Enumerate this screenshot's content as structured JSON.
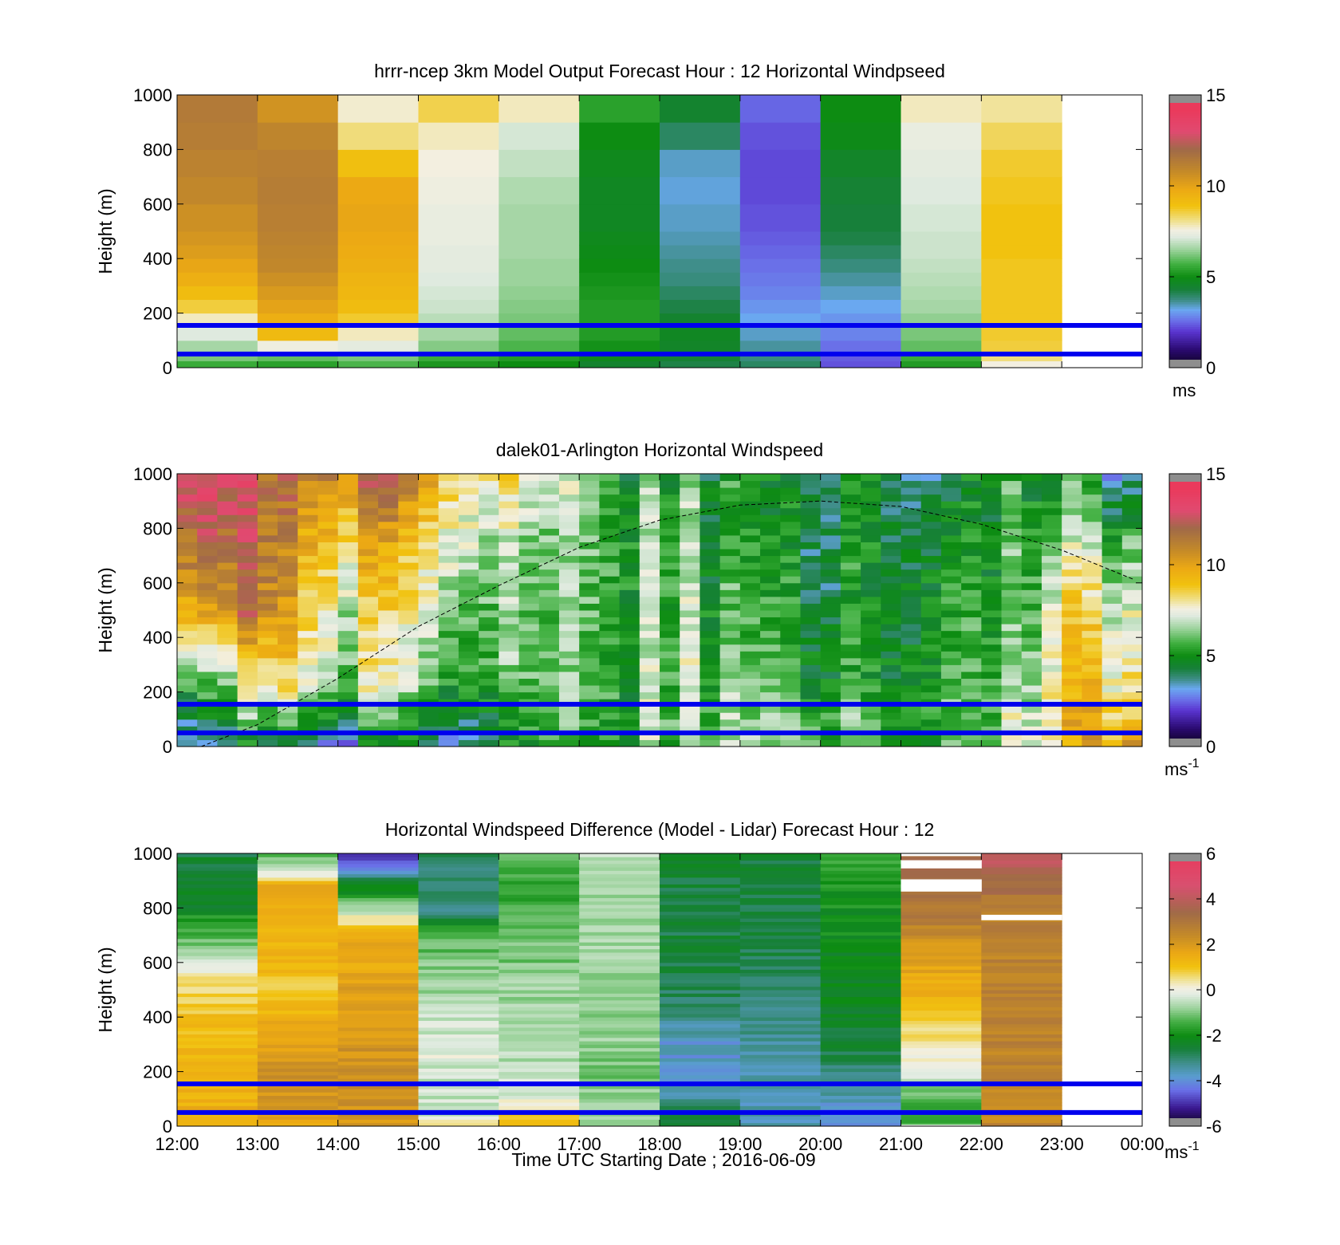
{
  "figure": {
    "xlabel": "Time UTC  Starting Date ; 2016-06-09",
    "x_tick_labels": [
      "12:00",
      "13:00",
      "14:00",
      "15:00",
      "16:00",
      "17:00",
      "18:00",
      "19:00",
      "20:00",
      "21:00",
      "22:00",
      "23:00",
      "00:00"
    ],
    "colors": {
      "boundary_line": "#0000ee",
      "solar_curve": "#000000"
    }
  },
  "chart_data": [
    {
      "type": "heatmap",
      "title": "hrrr-ncep 3km Model Output   Forecast Hour : 12 Horizontal Windpseed",
      "ylabel": "Height (m)",
      "ylim": [
        0,
        1000
      ],
      "y_ticks": [
        "0",
        "200",
        "400",
        "600",
        "800",
        "1000"
      ],
      "x_range": [
        "12:00",
        "00:00"
      ],
      "colorbar": {
        "range": [
          0,
          15
        ],
        "ticks": [
          "0",
          "5",
          "10",
          "15"
        ],
        "unit": "ms",
        "unit_sup": ""
      },
      "colormap": "windspeed",
      "levels_m": [
        0,
        25,
        55,
        100,
        150,
        200,
        250,
        300,
        350,
        400,
        450,
        500,
        600,
        700,
        800,
        900,
        1000
      ],
      "hours": [
        {
          "hour": "12:00",
          "values": [
            5.6,
            6.2,
            6.6,
            7.2,
            7.8,
            8.6,
            9.1,
            9.6,
            9.9,
            10.2,
            10.4,
            10.6,
            10.9,
            11.1,
            11.3,
            11.4
          ]
        },
        {
          "hour": "13:00",
          "values": [
            5.4,
            6.0,
            7.5,
            9.2,
            9.6,
            10.0,
            10.3,
            10.6,
            10.9,
            11.0,
            11.1,
            11.2,
            11.3,
            11.2,
            11.0,
            10.5
          ]
        },
        {
          "hour": "14:00",
          "values": [
            5.8,
            6.2,
            7.3,
            7.8,
            8.7,
            9.1,
            9.3,
            9.4,
            9.6,
            9.7,
            9.8,
            9.9,
            9.8,
            9.0,
            8.2,
            7.7
          ]
        },
        {
          "hour": "15:00",
          "values": [
            5.2,
            5.6,
            6.3,
            6.6,
            6.8,
            7.0,
            7.1,
            7.2,
            7.3,
            7.3,
            7.4,
            7.4,
            7.5,
            7.6,
            7.8,
            8.5
          ]
        },
        {
          "hour": "16:00",
          "values": [
            5.0,
            5.3,
            5.8,
            6.0,
            6.2,
            6.3,
            6.4,
            6.5,
            6.5,
            6.6,
            6.6,
            6.6,
            6.7,
            6.9,
            7.1,
            7.8
          ]
        },
        {
          "hour": "17:00",
          "values": [
            4.5,
            4.8,
            5.1,
            5.3,
            5.3,
            5.3,
            5.2,
            5.1,
            5.0,
            4.9,
            4.8,
            4.7,
            4.7,
            4.8,
            5.0,
            5.4
          ]
        },
        {
          "hour": "18:00",
          "values": [
            4.2,
            4.4,
            4.6,
            4.7,
            4.5,
            4.2,
            4.0,
            3.8,
            3.7,
            3.6,
            3.5,
            3.4,
            3.3,
            3.4,
            4.0,
            4.5
          ]
        },
        {
          "hour": "19:00",
          "values": [
            4.0,
            3.8,
            3.6,
            3.4,
            3.2,
            3.0,
            2.8,
            2.7,
            2.6,
            2.5,
            2.4,
            2.3,
            2.2,
            2.2,
            2.3,
            2.5
          ]
        },
        {
          "hour": "20:00",
          "values": [
            2.3,
            2.4,
            2.6,
            2.8,
            3.0,
            3.2,
            3.4,
            3.6,
            3.8,
            4.0,
            4.2,
            4.3,
            4.4,
            4.6,
            4.9,
            5.0
          ]
        },
        {
          "hour": "21:00",
          "values": [
            5.3,
            5.6,
            6.0,
            6.2,
            6.4,
            6.6,
            6.7,
            6.8,
            6.9,
            7.0,
            7.0,
            7.1,
            7.2,
            7.3,
            7.4,
            7.8
          ]
        },
        {
          "hour": "22:00",
          "values": [
            7.6,
            8.2,
            8.6,
            8.7,
            8.8,
            8.8,
            8.8,
            8.8,
            8.8,
            8.9,
            8.9,
            8.9,
            8.8,
            8.7,
            8.4,
            8.0
          ]
        },
        {
          "hour": "23:00",
          "values": []
        }
      ],
      "boundary_lines_m": [
        50,
        155
      ]
    },
    {
      "type": "heatmap",
      "title": "dalek01-Arlington  Horizontal Windspeed",
      "ylabel": "Height (m)",
      "ylim": [
        0,
        1000
      ],
      "y_ticks": [
        "0",
        "200",
        "400",
        "600",
        "800",
        "1000"
      ],
      "x_range": [
        "12:00",
        "00:00"
      ],
      "colorbar": {
        "range": [
          0,
          15
        ],
        "ticks": [
          "0",
          "5",
          "10",
          "15"
        ],
        "unit": "ms",
        "unit_sup": "-1"
      },
      "colormap": "windspeed",
      "lidar_profile_keys_hours": [
        12.0,
        12.5,
        13.0,
        13.5,
        14.0,
        14.5,
        15.0,
        15.5,
        16.0,
        16.5,
        17.0,
        17.5,
        18.0,
        18.5,
        19.0,
        19.5,
        20.0,
        20.5,
        21.0,
        21.5,
        22.0,
        22.5,
        23.0,
        23.5,
        24.0
      ],
      "lidar_profile_keys_heights_m": [
        0,
        100,
        250,
        500,
        750,
        1000
      ],
      "lidar_profile_keys_values": [
        [
          3.2,
          4.5,
          6.0,
          10.0,
          12.0,
          13.5
        ],
        [
          3.5,
          5.0,
          6.5,
          10.8,
          12.5,
          13.8
        ],
        [
          3.6,
          5.2,
          7.5,
          11.0,
          11.2,
          11.5
        ],
        [
          3.5,
          5.5,
          7.8,
          9.0,
          10.0,
          11.0
        ],
        [
          3.4,
          5.0,
          7.0,
          7.8,
          9.2,
          11.5
        ],
        [
          3.5,
          5.2,
          6.8,
          7.6,
          9.0,
          11.8
        ],
        [
          4.0,
          5.0,
          6.6,
          7.4,
          8.5,
          10.5
        ],
        [
          4.5,
          5.2,
          6.5,
          7.3,
          8.5,
          9.5
        ],
        [
          4.6,
          5.0,
          6.2,
          6.4,
          7.0,
          8.5
        ],
        [
          5.0,
          5.4,
          5.6,
          5.8,
          6.0,
          7.0
        ],
        [
          5.2,
          5.5,
          5.4,
          5.6,
          5.8,
          6.0
        ],
        [
          5.6,
          5.8,
          5.6,
          5.8,
          5.7,
          5.4
        ],
        [
          6.0,
          6.2,
          6.0,
          6.0,
          5.8,
          5.6
        ],
        [
          6.2,
          6.4,
          6.2,
          6.0,
          5.8,
          5.5
        ],
        [
          6.4,
          6.5,
          6.0,
          5.6,
          5.2,
          5.0
        ],
        [
          6.5,
          6.6,
          5.8,
          5.4,
          5.0,
          4.8
        ],
        [
          6.5,
          6.6,
          5.6,
          5.2,
          5.0,
          5.2
        ],
        [
          6.0,
          6.2,
          5.4,
          5.2,
          5.2,
          5.5
        ],
        [
          5.5,
          6.0,
          5.4,
          5.2,
          5.0,
          4.2
        ],
        [
          5.6,
          5.9,
          5.5,
          5.2,
          4.8,
          4.0
        ],
        [
          5.8,
          6.0,
          5.6,
          5.2,
          5.0,
          4.5
        ],
        [
          7.5,
          7.2,
          6.4,
          6.0,
          6.0,
          5.5
        ],
        [
          9.0,
          9.4,
          9.0,
          8.6,
          7.0,
          5.5
        ],
        [
          10.0,
          9.5,
          8.8,
          8.2,
          6.5,
          4.5
        ],
        [
          10.5,
          9.0,
          8.0,
          7.2,
          6.0,
          3.0
        ]
      ],
      "solar_curve": {
        "hours": [
          12.3,
          13.0,
          14.0,
          15.0,
          16.0,
          17.0,
          18.0,
          19.0,
          20.0,
          21.0,
          22.0,
          23.0,
          24.0
        ],
        "heights_m": [
          0,
          80,
          250,
          440,
          590,
          730,
          830,
          885,
          900,
          880,
          815,
          720,
          600
        ]
      },
      "boundary_lines_m": [
        50,
        155
      ]
    },
    {
      "type": "heatmap",
      "title": "Horizontal Windspeed Difference (Model - Lidar) Forecast Hour : 12",
      "ylabel": "Height (m)",
      "ylim": [
        0,
        1000
      ],
      "y_ticks": [
        "0",
        "200",
        "400",
        "600",
        "800",
        "1000"
      ],
      "x_range": [
        "12:00",
        "00:00"
      ],
      "colorbar": {
        "range": [
          -6,
          6
        ],
        "ticks": [
          "-6",
          "-4",
          "-2",
          "0",
          "2",
          "4",
          "6"
        ],
        "unit": "ms",
        "unit_sup": "-1"
      },
      "colormap": "difference",
      "diff_profiles": [
        {
          "hour": "12:00",
          "heights_m": [
            0,
            150,
            300,
            450,
            550,
            650,
            800,
            1000
          ],
          "values": [
            1.5,
            1.4,
            1.3,
            0.9,
            0.3,
            -0.8,
            -2.2,
            -2.6
          ]
        },
        {
          "hour": "13:00",
          "heights_m": [
            0,
            150,
            300,
            500,
            700,
            880,
            940,
            1000
          ],
          "values": [
            1.6,
            2.3,
            1.8,
            1.0,
            1.4,
            1.6,
            -0.5,
            -1.2
          ]
        },
        {
          "hour": "14:00",
          "heights_m": [
            0,
            150,
            300,
            500,
            700,
            760,
            820,
            900,
            960,
            1000
          ],
          "values": [
            2.0,
            2.3,
            2.1,
            1.8,
            1.5,
            0.3,
            -1.2,
            -2.8,
            -4.5,
            -5.0
          ]
        },
        {
          "hour": "15:00",
          "heights_m": [
            0,
            50,
            150,
            180,
            260,
            400,
            600,
            700,
            800,
            1000
          ],
          "values": [
            0.7,
            -0.6,
            -0.3,
            -0.5,
            -0.2,
            -0.5,
            -1.0,
            -1.4,
            -3.2,
            -2.8
          ]
        },
        {
          "hour": "16:00",
          "heights_m": [
            0,
            150,
            300,
            500,
            700,
            850,
            1000
          ],
          "values": [
            1.1,
            -0.5,
            -0.6,
            -0.8,
            -1.2,
            -1.5,
            -1.4
          ]
        },
        {
          "hour": "17:00",
          "heights_m": [
            0,
            150,
            300,
            500,
            700,
            900,
            1000
          ],
          "values": [
            -0.8,
            -1.0,
            -0.9,
            -0.7,
            -0.8,
            -0.7,
            -0.6
          ]
        },
        {
          "hour": "18:00",
          "heights_m": [
            0,
            100,
            200,
            300,
            400,
            500,
            650,
            800,
            1000
          ],
          "values": [
            -2.5,
            -3.2,
            -3.8,
            -3.8,
            -3.2,
            -2.8,
            -2.6,
            -2.7,
            -2.5
          ]
        },
        {
          "hour": "19:00",
          "heights_m": [
            0,
            100,
            200,
            300,
            400,
            600,
            800,
            1000
          ],
          "values": [
            -3.5,
            -3.6,
            -3.6,
            -3.4,
            -3.2,
            -2.8,
            -2.6,
            -2.6
          ]
        },
        {
          "hour": "20:00",
          "heights_m": [
            0,
            100,
            200,
            300,
            500,
            700,
            850,
            1000
          ],
          "values": [
            -4.3,
            -3.6,
            -3.0,
            -2.5,
            -2.3,
            -2.1,
            -1.9,
            -1.6
          ]
        },
        {
          "hour": "21:00",
          "heights_m": [
            0,
            100,
            200,
            350,
            500,
            650,
            700,
            800,
            1000
          ],
          "values": [
            -1.6,
            -1.4,
            -0.2,
            0.6,
            1.5,
            1.9,
            2.5,
            3.0,
            3.5
          ]
        },
        {
          "hour": "22:00",
          "heights_m": [
            0,
            200,
            400,
            600,
            800,
            900,
            1000
          ],
          "values": [
            2.5,
            2.6,
            2.6,
            2.6,
            2.8,
            3.5,
            4.2
          ]
        }
      ],
      "blank_bands": [
        {
          "hour": "21:00",
          "from_m": 0,
          "to_m": 5
        },
        {
          "hour": "21:00",
          "from_m": 860,
          "to_m": 905
        },
        {
          "hour": "21:00",
          "from_m": 945,
          "to_m": 975
        },
        {
          "hour": "21:00",
          "from_m": 990,
          "to_m": 1000
        },
        {
          "hour": "22:00",
          "from_m": 755,
          "to_m": 775
        }
      ],
      "boundary_lines_m": [
        50,
        155
      ]
    }
  ]
}
